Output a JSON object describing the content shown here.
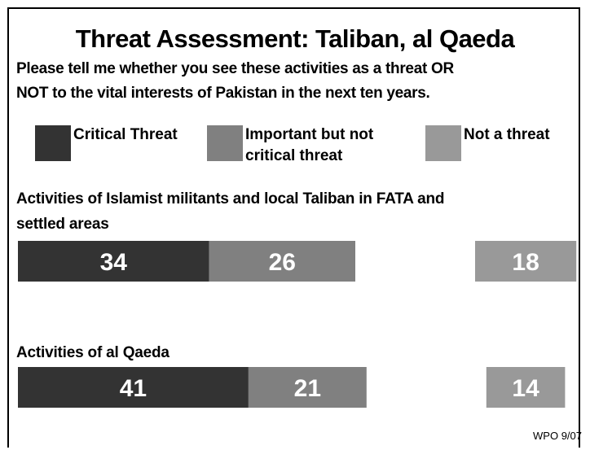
{
  "title": "Threat Assessment: Taliban, al Qaeda",
  "question_line1": "Please tell me whether you see these activities as a threat OR",
  "question_line2": "NOT to the vital interests of Pakistan in the next ten years.",
  "source": "WPO 9/07",
  "colors": {
    "critical": "#333333",
    "important": "#808080",
    "not_threat": "#999999"
  },
  "legend": [
    {
      "line1": "Critical Threat",
      "line2": ""
    },
    {
      "line1": "Important but not",
      "line2": "critical threat"
    },
    {
      "line1": "Not a threat",
      "line2": ""
    }
  ],
  "chart_data": {
    "type": "bar",
    "orientation": "horizontal",
    "stacked": true,
    "categories": [
      {
        "line1": "Activities of Islamist militants and local Taliban in FATA and",
        "line2": "settled areas"
      },
      {
        "line1": "Activities of al Qaeda",
        "line2": ""
      }
    ],
    "series": [
      {
        "name": "Critical Threat",
        "values": [
          34,
          41
        ]
      },
      {
        "name": "Important but not critical threat",
        "values": [
          26,
          21
        ]
      },
      {
        "name": "Not a threat",
        "values": [
          18,
          14
        ]
      }
    ],
    "xlim": [
      0,
      100
    ],
    "grid": false,
    "legend_position": "top"
  }
}
